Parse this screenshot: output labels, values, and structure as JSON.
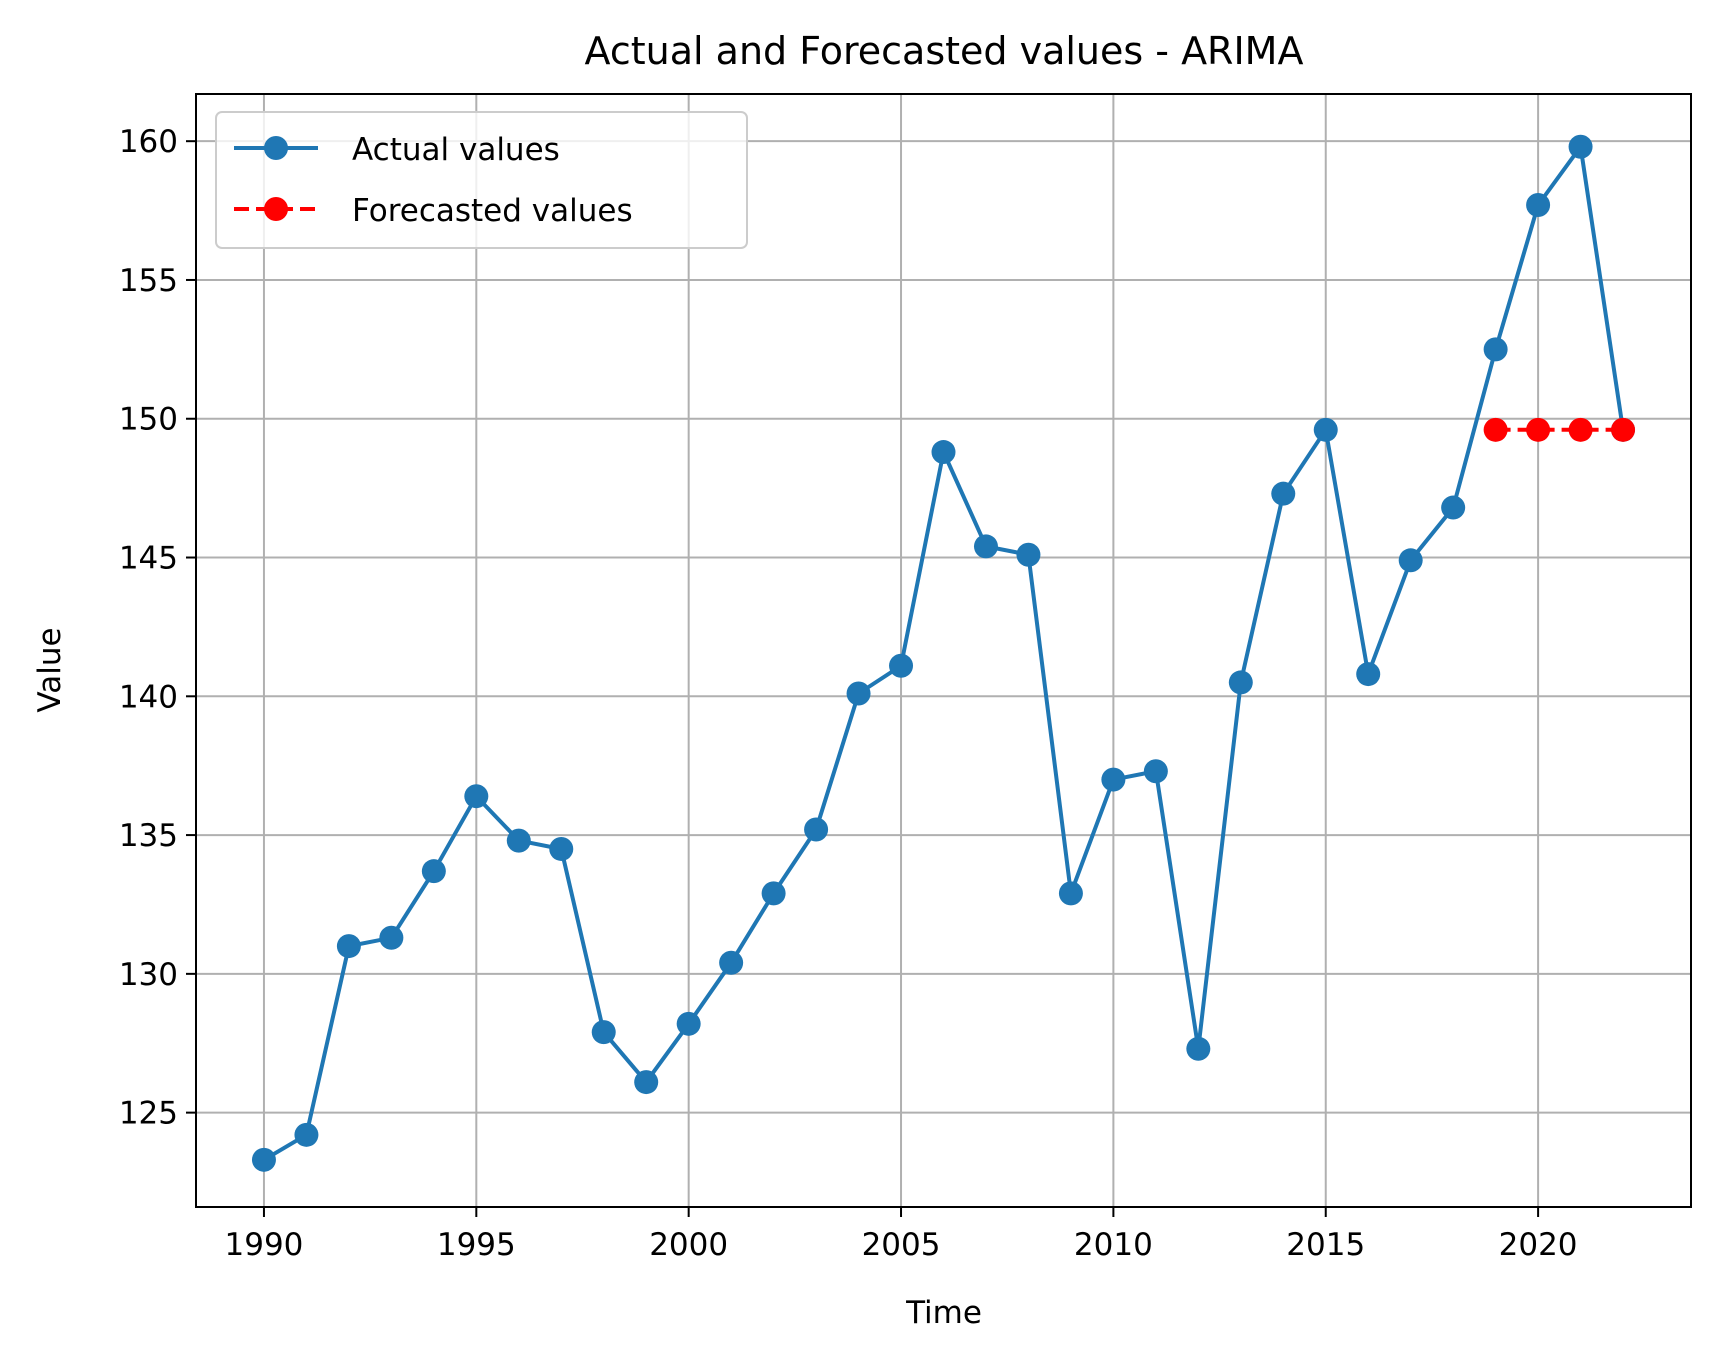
{
  "chart_data": {
    "type": "line",
    "title": "Actual and Forecasted values - ARIMA",
    "xlabel": "Time",
    "ylabel": "Value",
    "xlim": [
      1988.4,
      2023.6
    ],
    "ylim": [
      121.6,
      161.7
    ],
    "grid": true,
    "legend_position": "top-left",
    "x_ticks": [
      "1990",
      "1995",
      "2000",
      "2005",
      "2010",
      "2015",
      "2020"
    ],
    "y_ticks": [
      "125",
      "130",
      "135",
      "140",
      "145",
      "150",
      "155",
      "160"
    ],
    "series": [
      {
        "name": "Actual values",
        "color": "#1f77b4",
        "line_style": "solid",
        "marker": "circle",
        "x": [
          1990,
          1991,
          1992,
          1993,
          1994,
          1995,
          1996,
          1997,
          1998,
          1999,
          2000,
          2001,
          2002,
          2003,
          2004,
          2005,
          2006,
          2007,
          2008,
          2009,
          2010,
          2011,
          2012,
          2013,
          2014,
          2015,
          2016,
          2017,
          2018,
          2019,
          2020,
          2021,
          2022
        ],
        "y": [
          123.3,
          124.2,
          131.0,
          131.3,
          133.7,
          136.4,
          134.8,
          134.5,
          127.9,
          126.1,
          128.2,
          130.4,
          132.9,
          135.2,
          140.1,
          141.1,
          148.8,
          145.4,
          145.1,
          132.9,
          137.0,
          137.3,
          127.3,
          140.5,
          147.3,
          149.6,
          140.8,
          144.9,
          146.8,
          152.5,
          157.7,
          159.8,
          149.6
        ]
      },
      {
        "name": "Forecasted values",
        "color": "#ff0000",
        "line_style": "dashed",
        "marker": "circle",
        "x": [
          2019,
          2020,
          2021,
          2022
        ],
        "y": [
          149.6,
          149.6,
          149.6,
          149.6
        ]
      }
    ]
  }
}
